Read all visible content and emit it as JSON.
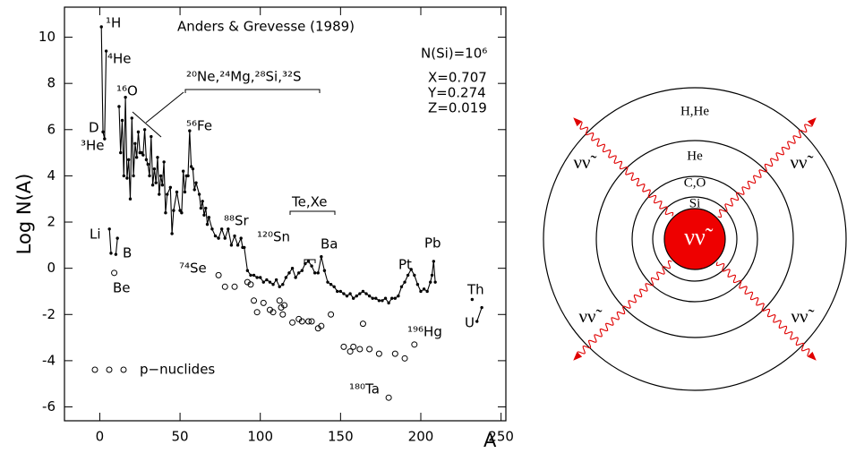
{
  "chart_data": {
    "type": "line",
    "title": "Anders & Grevesse (1989)",
    "xlabel": "A",
    "ylabel": "Log N(A)",
    "xlim": [
      -22,
      253
    ],
    "ylim": [
      -6.6,
      11.3
    ],
    "xticks": [
      0,
      50,
      100,
      150,
      200,
      250
    ],
    "yticks": [
      -6,
      -4,
      -2,
      0,
      2,
      4,
      6,
      8,
      10
    ],
    "color": "#000000",
    "series": [
      {
        "type": "line",
        "x": [
          1,
          2,
          3,
          4,
          null,
          6,
          7,
          null,
          10,
          11,
          null,
          12,
          13,
          14,
          15,
          16,
          17,
          18,
          19,
          20,
          21,
          22,
          23,
          24,
          25,
          26,
          27,
          28,
          29,
          30,
          31,
          32,
          33,
          34,
          35,
          36,
          37,
          38,
          39,
          40,
          41,
          42,
          44,
          45,
          46,
          48,
          50,
          51,
          52,
          53,
          54,
          55,
          56,
          57,
          58,
          59,
          60,
          62,
          63,
          64,
          65,
          66,
          67,
          68,
          70,
          72,
          74,
          76,
          78,
          80,
          82,
          84,
          86,
          88,
          89,
          90,
          92,
          94,
          96,
          98,
          100,
          102,
          104,
          106,
          108,
          110,
          112,
          114,
          116,
          118,
          120,
          122,
          124,
          126,
          128,
          130,
          132,
          134,
          136,
          138,
          140,
          142,
          144,
          146,
          148,
          150,
          152,
          154,
          156,
          158,
          160,
          162,
          164,
          166,
          168,
          170,
          172,
          174,
          176,
          178,
          180,
          182,
          184,
          186,
          188,
          190,
          192,
          194,
          196,
          198,
          200,
          202,
          204,
          206,
          207,
          208,
          209,
          null,
          232,
          null,
          235,
          238
        ],
        "values": [
          10.45,
          5.9,
          5.6,
          9.4,
          null,
          1.7,
          0.65,
          null,
          0.6,
          1.3,
          null,
          7.0,
          5.0,
          6.4,
          4.0,
          7.4,
          3.9,
          4.7,
          3.0,
          6.5,
          4.0,
          5.4,
          4.8,
          5.9,
          5.0,
          5.0,
          4.9,
          6.0,
          4.7,
          4.5,
          4.0,
          5.7,
          3.6,
          4.3,
          3.7,
          4.8,
          3.2,
          4.0,
          3.6,
          4.6,
          2.4,
          3.2,
          3.5,
          1.5,
          2.5,
          3.3,
          2.5,
          2.4,
          4.2,
          3.3,
          4.0,
          4.0,
          5.95,
          4.4,
          4.3,
          3.4,
          3.7,
          3.2,
          2.6,
          2.9,
          2.3,
          2.6,
          1.9,
          2.2,
          1.7,
          1.4,
          1.3,
          1.7,
          1.3,
          1.7,
          1.0,
          1.4,
          1.0,
          1.3,
          0.9,
          0.9,
          -0.1,
          -0.3,
          -0.3,
          -0.4,
          -0.4,
          -0.6,
          -0.5,
          -0.6,
          -0.7,
          -0.5,
          -0.8,
          -0.7,
          -0.4,
          -0.2,
          0.0,
          -0.4,
          -0.2,
          -0.1,
          0.2,
          0.3,
          0.1,
          -0.2,
          -0.2,
          0.5,
          -0.1,
          -0.6,
          -0.7,
          -0.8,
          -1.0,
          -1.0,
          -1.1,
          -1.2,
          -1.1,
          -1.3,
          -1.2,
          -1.1,
          -1.0,
          -1.1,
          -1.2,
          -1.3,
          -1.3,
          -1.4,
          -1.4,
          -1.3,
          -1.5,
          -1.3,
          -1.3,
          -1.2,
          -0.8,
          -0.6,
          -0.3,
          -0.05,
          -0.3,
          -0.7,
          -1.0,
          -0.9,
          -1.0,
          -0.6,
          -0.3,
          0.3,
          -0.6,
          null,
          -1.35,
          null,
          -2.3,
          -1.7
        ]
      },
      {
        "type": "scatter",
        "name": "p−nuclides",
        "x": [
          9,
          74,
          78,
          84,
          92,
          94,
          96,
          98,
          102,
          106,
          108,
          112,
          113,
          114,
          115,
          120,
          124,
          126,
          130,
          132,
          136,
          138,
          144,
          152,
          156,
          158,
          162,
          164,
          168,
          174,
          180,
          184,
          190,
          196
        ],
        "values": [
          -0.2,
          -0.3,
          -0.8,
          -0.8,
          -0.6,
          -0.7,
          -1.4,
          -1.9,
          -1.5,
          -1.8,
          -1.9,
          -1.4,
          -1.7,
          -2.0,
          -1.6,
          -2.35,
          -2.2,
          -2.3,
          -2.3,
          -2.3,
          -2.6,
          -2.5,
          -2.0,
          -3.4,
          -3.6,
          -3.4,
          -3.5,
          -2.4,
          -3.5,
          -3.7,
          -5.6,
          -3.7,
          -3.9,
          -3.3
        ]
      }
    ],
    "annotations": [
      "¹H",
      "⁴He",
      "D",
      "³He",
      "¹⁶O",
      "²⁰Ne,²⁴Mg,²⁸Si,³²S",
      "⁵⁶Fe",
      "⁸⁸Sr",
      "¹²⁰Sn",
      "Te,Xe",
      "Ba",
      "Li",
      "B",
      "Be",
      "⁷⁴Se",
      "Pt",
      "Pb",
      "¹⁹⁶Hg",
      "¹⁸⁰Ta",
      "Th",
      "U",
      "N(Si)=10⁶",
      "X=0.707",
      "Y=0.274",
      "Z=0.019"
    ]
  },
  "diagram": {
    "shells": [
      "H,He",
      "He",
      "C,O",
      "Si"
    ],
    "core": "νν̃",
    "neutrinos": [
      "νν̃",
      "νν̃",
      "νν̃",
      "νν̃"
    ]
  }
}
